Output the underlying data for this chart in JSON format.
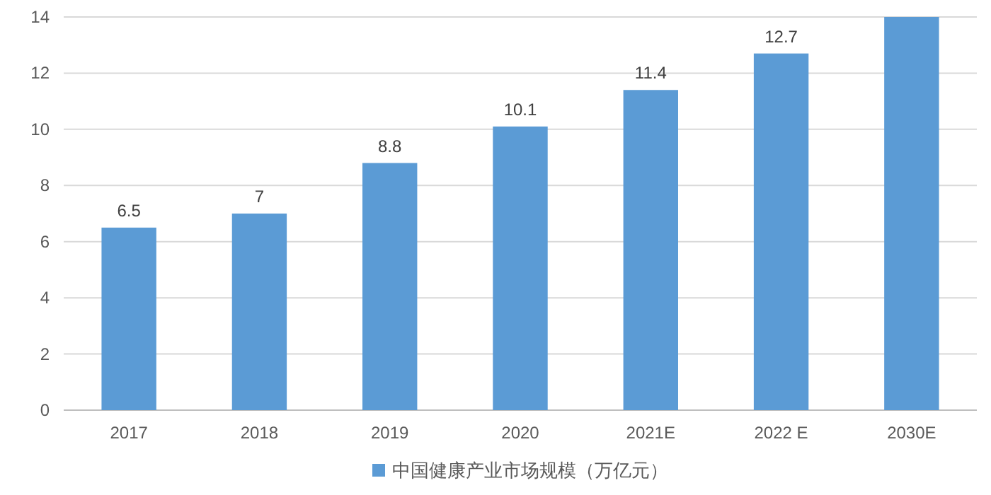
{
  "chart_data": {
    "type": "bar",
    "categories": [
      "2017",
      "2018",
      "2019",
      "2020",
      "2021E",
      "2022 E",
      "2030E"
    ],
    "series": [
      {
        "name": "中国健康产业市场规模（万亿元）",
        "color": "#5b9bd5",
        "values": [
          6.5,
          7,
          8.8,
          10.1,
          11.4,
          12.7,
          14
        ],
        "value_labels": [
          "6.5",
          "7",
          "8.8",
          "10.1",
          "11.4",
          "12.7",
          null
        ]
      }
    ],
    "ylim": [
      0,
      14
    ],
    "yticks": [
      0,
      2,
      4,
      6,
      8,
      10,
      12,
      14
    ],
    "grid": "y",
    "legend": "bottom"
  }
}
